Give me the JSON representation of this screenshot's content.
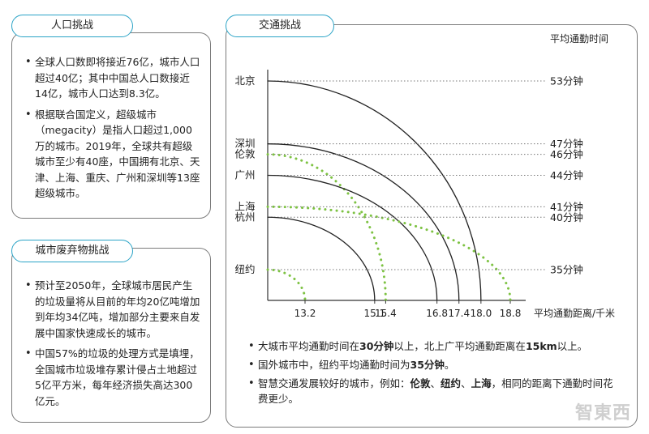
{
  "population": {
    "title": "人口挑战",
    "items": [
      "全球人口数即将接近76亿，城市人口超过40亿；其中中国总人口数接近14亿，城市人口达到8.3亿。",
      "根据联合国定义，超级城市（megacity）是指人口超过1,000万的城市。2019年，全球共有超级城市至少有40座，中国拥有北京、天津、上海、重庆、广州和深圳等13座超级城市。"
    ]
  },
  "waste": {
    "title": "城市废弃物挑战",
    "items": [
      "预计至2050年，全球城市居民产生的垃圾量将从目前的年均20亿吨增加到年均34亿吨，增加部分主要来自发展中国家快速成长的城市。",
      "中国57%的垃圾的处理方式是填埋，全国城市垃圾堆存累计侵占土地超过5亿平方米，每年经济损失高达300亿元。"
    ]
  },
  "traffic": {
    "title": "交通挑战",
    "notes": [
      {
        "pre": "大城市平均通勤时间在",
        "b1": "30分钟",
        "mid": "以上，北上广平均通勤距离在",
        "b2": "15km",
        "post": "以上。"
      },
      {
        "pre": "国外城市中，纽约平均通勤时间为",
        "b1": "35分钟",
        "post": "。"
      },
      {
        "pre": "智慧交通发展较好的城市，例如：",
        "b1": "伦敦",
        "sep1": "、",
        "b2": "纽约",
        "sep2": "、",
        "b3": "上海",
        "post": "，相同的距离下通勤时间花费更少。"
      }
    ]
  },
  "chart_data": {
    "type": "diagram",
    "y_axis_title": "平均通勤时间",
    "x_axis_title": "平均通勤距离/千米",
    "cities": [
      {
        "name": "北京",
        "time": 53,
        "time_label": "53分钟",
        "distance": 18.0,
        "style": "solid"
      },
      {
        "name": "深圳",
        "time": 47,
        "time_label": "47分钟",
        "distance": 17.4,
        "style": "solid"
      },
      {
        "name": "伦敦",
        "time": 46,
        "time_label": "46分钟",
        "distance": 15.4,
        "style": "dotted"
      },
      {
        "name": "广州",
        "time": 44,
        "time_label": "44分钟",
        "distance": 16.8,
        "style": "solid"
      },
      {
        "name": "上海",
        "time": 41,
        "time_label": "41分钟",
        "distance": 18.8,
        "style": "dotted"
      },
      {
        "name": "杭州",
        "time": 40,
        "time_label": "40分钟",
        "distance": 15.1,
        "style": "solid"
      },
      {
        "name": "纽约",
        "time": 35,
        "time_label": "35分钟",
        "distance": 13.2,
        "style": "dotted"
      }
    ],
    "x_ticks": [
      "13.2",
      "15.1",
      "15.4",
      "16.8",
      "17.4",
      "18.0",
      "18.8"
    ],
    "colors": {
      "solid": "#222222",
      "dotted": "#7dc242",
      "guide": "#777777"
    }
  },
  "watermark": "智東西"
}
